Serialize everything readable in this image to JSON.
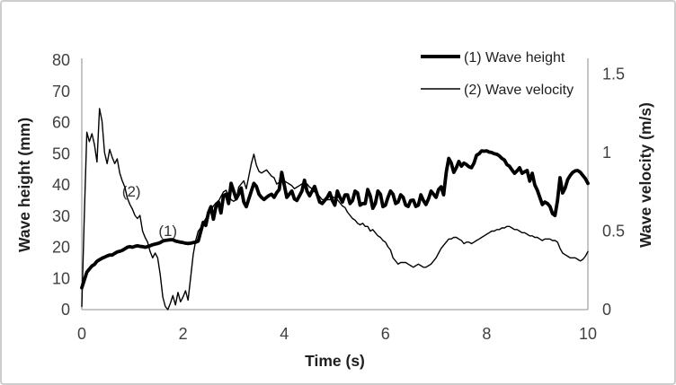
{
  "figure": {
    "background_color": "#ffffff",
    "border_color": "#cdcdcd",
    "axis_line_color": "#a6a6a6",
    "series_color": "#000000"
  },
  "chart_data": {
    "type": "line",
    "title": "",
    "xlabel": "Time (s)",
    "ylabel_left": "Wave height (mm)",
    "ylabel_right": "Wave velocity (m/s)",
    "xlim": [
      0,
      10
    ],
    "ylim_left": [
      0,
      80
    ],
    "ylim_right": [
      0,
      1.5
    ],
    "grid": false,
    "legend_position": "top-right-inside",
    "x_tick_labels": [
      "0",
      "2",
      "4",
      "6",
      "8",
      "10"
    ],
    "y_tick_labels_left": [
      "0",
      "10",
      "20",
      "30",
      "40",
      "50",
      "60",
      "70",
      "80"
    ],
    "y_tick_labels_right": [
      "0",
      "0.5",
      "1",
      "1.5"
    ],
    "annotations": [
      {
        "text": "(2)",
        "x": 0.98,
        "y_left_axis": 38
      },
      {
        "text": "(1)",
        "x": 1.7,
        "y_left_axis": 25.3
      }
    ],
    "series": [
      {
        "name": "(1) Wave height",
        "axis": "left",
        "color": "#000000",
        "line_style": "thick",
        "x_start": 0,
        "x_step": 0.05,
        "values": [
          7,
          9.5,
          12,
          13,
          14,
          14.5,
          15.5,
          16,
          16.5,
          16.8,
          17.2,
          17.5,
          17.5,
          18,
          18.5,
          18.7,
          19,
          19.5,
          20,
          20.2,
          20,
          20.3,
          20.5,
          20.3,
          20.2,
          20,
          20.2,
          20.5,
          20.8,
          21,
          21.2,
          21.5,
          22,
          22.2,
          22.3,
          22.4,
          22.4,
          22,
          21.8,
          21.6,
          21.5,
          21.3,
          21.2,
          21.3,
          21.5,
          21.6,
          22,
          25,
          28,
          27,
          31,
          33,
          29,
          33,
          34.5,
          31,
          36.5,
          37,
          34,
          40.5,
          38,
          35.5,
          37,
          39,
          34.5,
          33,
          35.5,
          38,
          40.5,
          39.5,
          37,
          36,
          35.3,
          36,
          36.6,
          37,
          36,
          37.5,
          38.5,
          44,
          40,
          36,
          37,
          38,
          35.5,
          35,
          36.5,
          38,
          41.5,
          38,
          36.5,
          38,
          39.5,
          37,
          34.5,
          34,
          35,
          36,
          37.5,
          35,
          33.5,
          38,
          36,
          34.5,
          36.8,
          36.8,
          34,
          35,
          38,
          37.4,
          33.5,
          34,
          34,
          38.5,
          36.5,
          32.5,
          34,
          38,
          37,
          33,
          33.5,
          36,
          38,
          37,
          34,
          34.5,
          36.8,
          36,
          33.5,
          33.1,
          35,
          35.1,
          33.1,
          33.5,
          36.8,
          35,
          33.7,
          35.5,
          38,
          37,
          36,
          38.5,
          39.4,
          36.8,
          44,
          48.5,
          47,
          44,
          45.5,
          47.5,
          46,
          47,
          46.5,
          45.8,
          45.5,
          47,
          49.5,
          50,
          50.9,
          50.8,
          50.9,
          50.5,
          50.4,
          50,
          49.8,
          49.3,
          48.5,
          48,
          46.5,
          46,
          44.8,
          43.7,
          44.5,
          45.5,
          43.7,
          44.2,
          44.6,
          41.2,
          43.7,
          40,
          38.3,
          36,
          33.7,
          34.5,
          34,
          33.1,
          30.8,
          30.2,
          35,
          42.3,
          37.4,
          39,
          41.7,
          43,
          44,
          44.5,
          44.6,
          44,
          43,
          42,
          40.5
        ]
      },
      {
        "name": "(2) Wave velocity",
        "axis": "right",
        "color": "#000000",
        "line_style": "thin",
        "x_start": 0,
        "x_step": 0.05,
        "values": [
          0.02,
          0.6,
          1.13,
          1.07,
          1.12,
          1.05,
          0.94,
          1.28,
          1.2,
          1,
          0.93,
          1.02,
          0.97,
          0.93,
          0.96,
          0.87,
          0.82,
          0.78,
          0.71,
          0.67,
          0.64,
          0.6,
          0.58,
          0.6,
          0.5,
          0.46,
          0.43,
          0.37,
          0.33,
          0.36,
          0.33,
          0.22,
          0.08,
          0.02,
          0,
          0.04,
          0.09,
          0.03,
          0.11,
          0.05,
          0.08,
          0.12,
          0.06,
          0.2,
          0.35,
          0.44,
          0.5,
          0.52,
          0.55,
          0.58,
          0.6,
          0.63,
          0.66,
          0.68,
          0.69,
          0.72,
          0.75,
          0.76,
          0.73,
          0.7,
          0.69,
          0.7,
          0.78,
          0.8,
          0.82,
          0.77,
          0.85,
          0.93,
          0.99,
          0.92,
          0.88,
          0.87,
          0.88,
          0.89,
          0.87,
          0.85,
          0.84,
          0.8,
          0.81,
          0.82,
          0.82,
          0.81,
          0.8,
          0.79,
          0.77,
          0.78,
          0.79,
          0.8,
          0.8,
          0.8,
          0.78,
          0.77,
          0.75,
          0.74,
          0.72,
          0.7,
          0.7,
          0.7,
          0.7,
          0.72,
          0.71,
          0.7,
          0.68,
          0.66,
          0.65,
          0.62,
          0.6,
          0.58,
          0.57,
          0.55,
          0.54,
          0.55,
          0.53,
          0.53,
          0.5,
          0.51,
          0.49,
          0.47,
          0.46,
          0.44,
          0.43,
          0.4,
          0.38,
          0.33,
          0.31,
          0.29,
          0.3,
          0.3,
          0.3,
          0.29,
          0.28,
          0.27,
          0.28,
          0.29,
          0.28,
          0.27,
          0.27,
          0.28,
          0.29,
          0.31,
          0.33,
          0.36,
          0.39,
          0.41,
          0.43,
          0.45,
          0.45,
          0.46,
          0.46,
          0.45,
          0.44,
          0.42,
          0.43,
          0.43,
          0.42,
          0.43,
          0.44,
          0.45,
          0.46,
          0.47,
          0.48,
          0.49,
          0.5,
          0.5,
          0.51,
          0.51,
          0.52,
          0.52,
          0.53,
          0.53,
          0.52,
          0.51,
          0.51,
          0.5,
          0.49,
          0.49,
          0.48,
          0.47,
          0.47,
          0.46,
          0.46,
          0.45,
          0.44,
          0.45,
          0.45,
          0.45,
          0.44,
          0.44,
          0.43,
          0.39,
          0.36,
          0.35,
          0.34,
          0.33,
          0.33,
          0.33,
          0.32,
          0.31,
          0.32,
          0.34,
          0.37
        ]
      }
    ]
  }
}
